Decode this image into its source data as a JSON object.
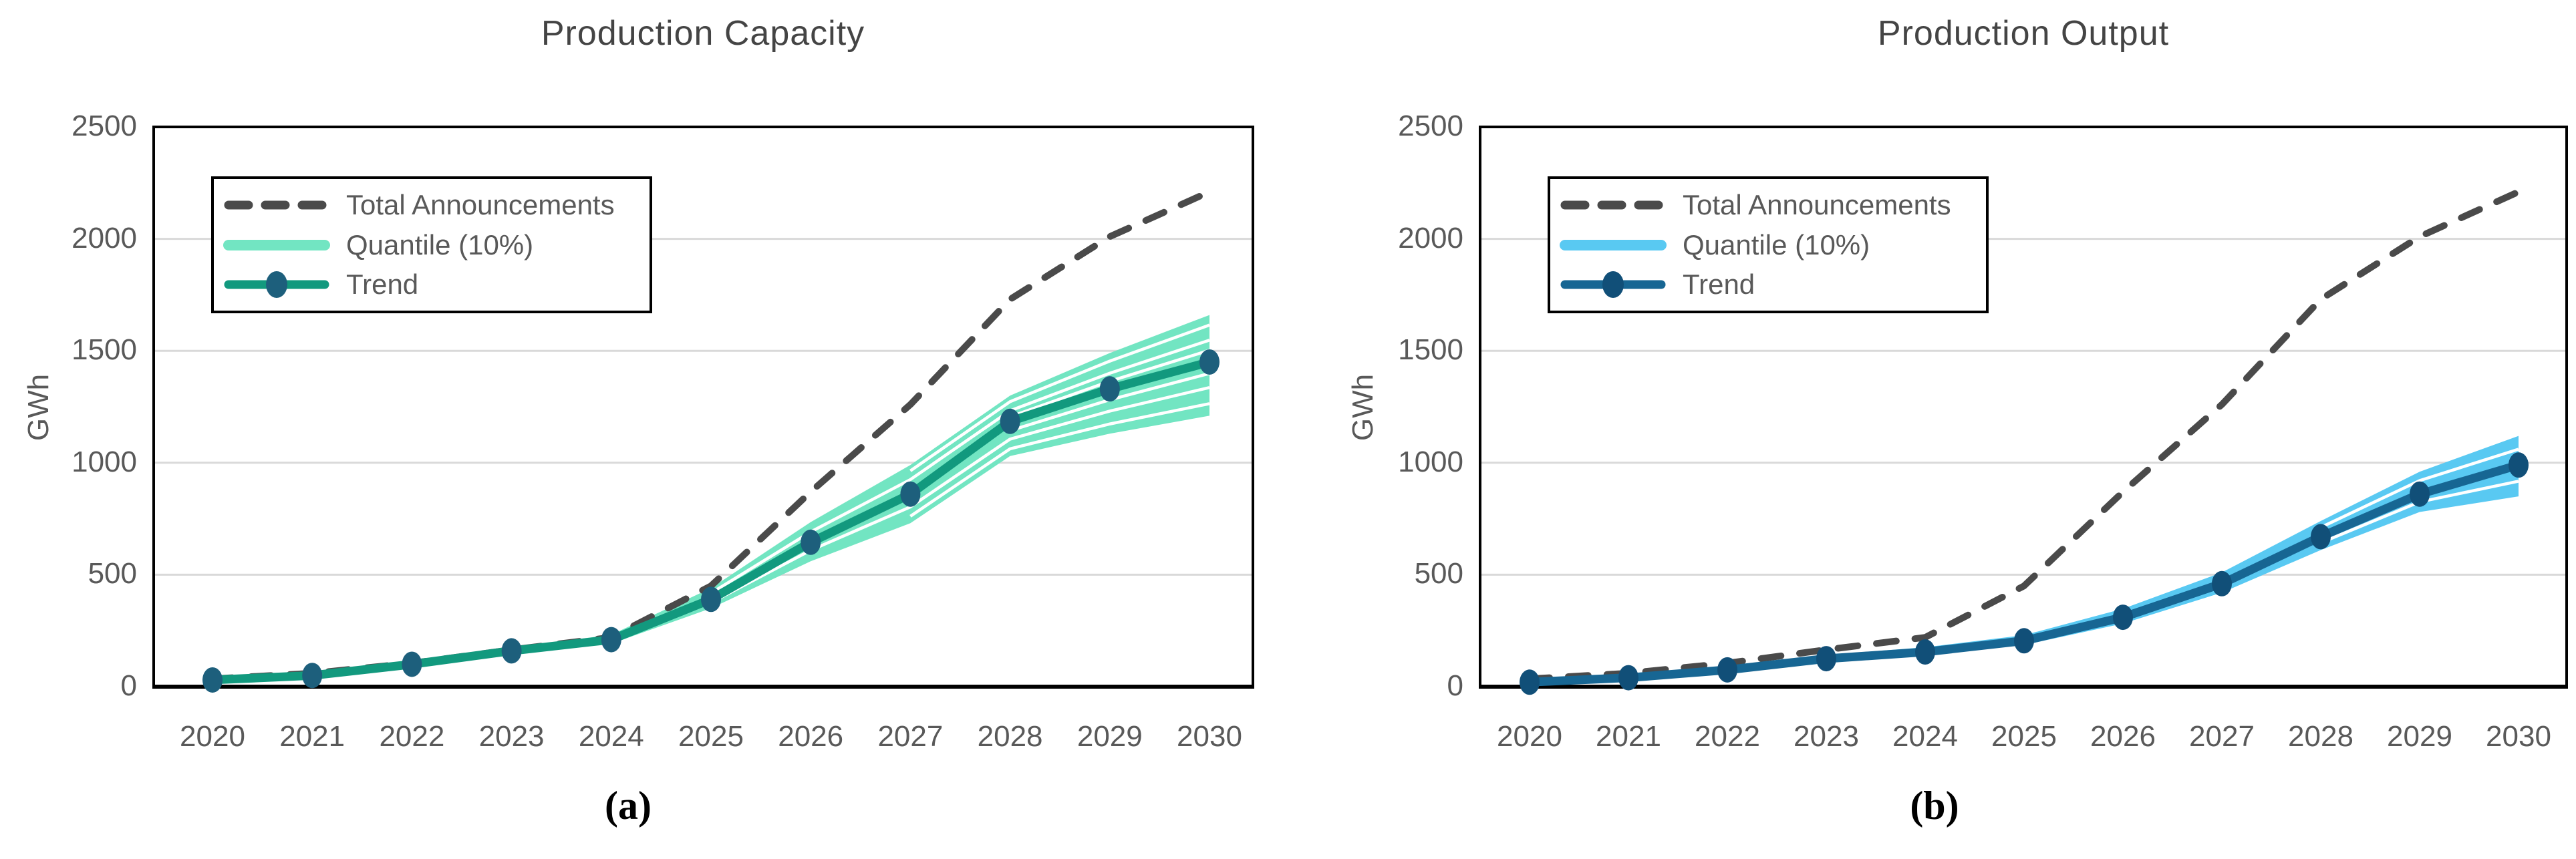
{
  "figure": {
    "background": "#ffffff",
    "dashed_color": "#4a4a4a",
    "grid_color": "#d9d9d9",
    "axis_text_color": "#595959",
    "title_color": "#444444",
    "border_color": "#000000"
  },
  "chart_data": [
    {
      "type": "line",
      "title": "Production Capacity",
      "ylabel": "GWh",
      "caption": "(a)",
      "ylim": [
        0,
        2500
      ],
      "yticks": [
        0,
        500,
        1000,
        1500,
        2000,
        2500
      ],
      "categories": [
        "2020",
        "2021",
        "2022",
        "2023",
        "2024",
        "2025",
        "2026",
        "2027",
        "2028",
        "2029",
        "2030"
      ],
      "grid": true,
      "legend": {
        "position": "top-left",
        "entries": [
          "Total Announcements",
          "Quantile (10%)",
          "Trend"
        ]
      },
      "colors": {
        "quantile": "#72e5c2",
        "trend": "#12997e",
        "marker": "#1d5f7c"
      },
      "series": [
        {
          "name": "Total Announcements",
          "style": "dashed",
          "values": [
            35,
            60,
            105,
            165,
            220,
            450,
            870,
            1260,
            1730,
            2010,
            2210
          ]
        },
        {
          "name": "Quantile (10%)",
          "style": "band",
          "low": [
            22,
            42,
            90,
            148,
            192,
            350,
            560,
            730,
            1030,
            1130,
            1210
          ],
          "high": [
            40,
            62,
            112,
            174,
            232,
            440,
            735,
            990,
            1300,
            1490,
            1660
          ]
        },
        {
          "name": "Trend",
          "style": "line-markers",
          "values": [
            30,
            50,
            100,
            160,
            210,
            390,
            645,
            860,
            1185,
            1330,
            1450
          ]
        }
      ]
    },
    {
      "type": "line",
      "title": "Production Output",
      "ylabel": "GWh",
      "caption": "(b)",
      "ylim": [
        0,
        2500
      ],
      "yticks": [
        0,
        500,
        1000,
        1500,
        2000,
        2500
      ],
      "categories": [
        "2020",
        "2021",
        "2022",
        "2023",
        "2024",
        "2025",
        "2026",
        "2027",
        "2028",
        "2029",
        "2030"
      ],
      "grid": true,
      "legend": {
        "position": "top-left",
        "entries": [
          "Total Announcements",
          "Quantile (10%)",
          "Trend"
        ]
      },
      "colors": {
        "quantile": "#59c9f2",
        "trend": "#176693",
        "marker": "#114f78"
      },
      "series": [
        {
          "name": "Total Announcements",
          "style": "dashed",
          "values": [
            35,
            60,
            105,
            165,
            220,
            450,
            870,
            1260,
            1730,
            2010,
            2210
          ]
        },
        {
          "name": "Quantile (10%)",
          "style": "band",
          "low": [
            12,
            30,
            62,
            110,
            140,
            186,
            282,
            420,
            610,
            780,
            850
          ],
          "high": [
            30,
            52,
            90,
            142,
            176,
            230,
            348,
            510,
            740,
            960,
            1120
          ]
        },
        {
          "name": "Trend",
          "style": "line-markers",
          "values": [
            20,
            40,
            75,
            125,
            155,
            205,
            310,
            460,
            670,
            860,
            990
          ]
        }
      ]
    }
  ]
}
